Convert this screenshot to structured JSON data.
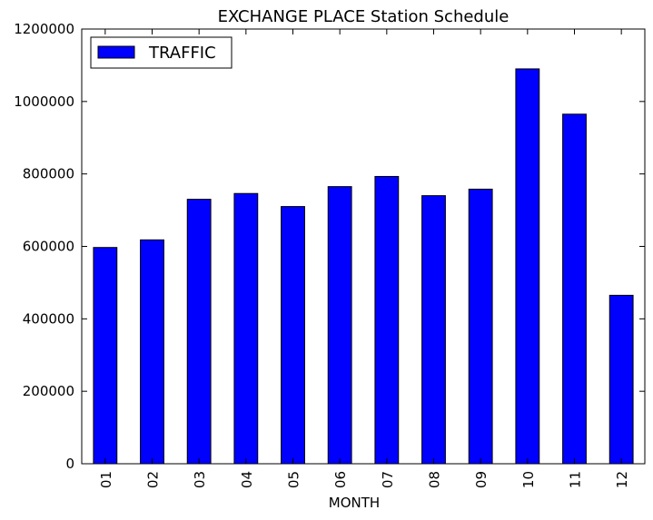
{
  "chart_data": {
    "type": "bar",
    "title": "EXCHANGE PLACE Station Schedule",
    "xlabel": "MONTH",
    "ylabel": "",
    "categories": [
      "01",
      "02",
      "03",
      "04",
      "05",
      "06",
      "07",
      "08",
      "09",
      "10",
      "11",
      "12"
    ],
    "series": [
      {
        "name": "TRAFFIC",
        "values": [
          597000,
          618000,
          730000,
          746000,
          710000,
          765000,
          793000,
          740000,
          758000,
          1090000,
          965000,
          465000
        ],
        "color": "#0000ff"
      }
    ],
    "ylim": [
      0,
      1200000
    ],
    "yticks": [
      0,
      200000,
      400000,
      600000,
      800000,
      1000000,
      1200000
    ],
    "grid": false,
    "legend_position": "top-left"
  }
}
